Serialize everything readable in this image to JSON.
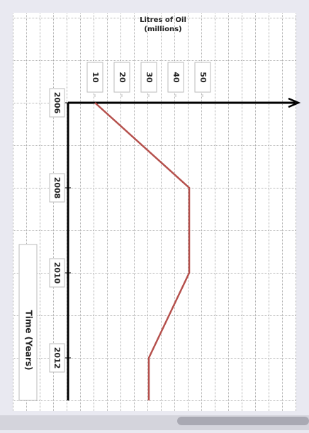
{
  "chart_data": {
    "type": "line",
    "x_label": "Time (Years)",
    "y_label": "Litres of Oil (millions)",
    "x": [
      2006,
      2008,
      2010,
      2012,
      2013
    ],
    "series": [
      {
        "name": "Oil",
        "color": "#b5504c",
        "values": [
          10,
          45,
          45,
          30,
          30
        ]
      }
    ],
    "xlim": [
      2006,
      2013
    ],
    "xticks": [
      2006,
      2008,
      2010,
      2012
    ],
    "ylim": [
      0,
      85
    ],
    "yticks": [
      10,
      20,
      30,
      40,
      50
    ]
  }
}
